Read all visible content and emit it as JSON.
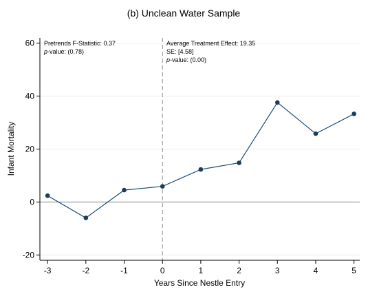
{
  "chart_data": {
    "type": "line",
    "title": "(b) Unclean Water Sample",
    "xlabel": "Years Since Nestle Entry",
    "ylabel": "Infant Mortality",
    "x": [
      -3,
      -2,
      -1,
      0,
      1,
      2,
      3,
      4,
      5
    ],
    "series": [
      {
        "values": [
          2.4,
          -6.0,
          4.5,
          5.9,
          12.3,
          14.8,
          37.6,
          25.8,
          33.3
        ]
      }
    ],
    "xlim": [
      -3.2,
      5.15
    ],
    "ylim": [
      -22,
      62
    ],
    "xticks": [
      "-3",
      "-2",
      "-1",
      "0",
      "1",
      "2",
      "3",
      "4",
      "5"
    ],
    "yticks": [
      "-20",
      "0",
      "20",
      "40",
      "60"
    ],
    "reference_lines": {
      "vertical_dashed_at_x": 0,
      "horizontal_at_y": 0
    },
    "grid": "horizontal light gridlines",
    "line_color": "#1f4e79",
    "marker_color": "#1f3b57",
    "annotations": {
      "left": {
        "line1": "Pretrends F-Statistic: 0.37",
        "pvalue_label": "p",
        "pvalue_rest": "-value: (0.78)"
      },
      "right": {
        "line1": "Average Treatment Effect: 19.35",
        "line2": "SE: [4.58]",
        "pvalue_label": "p",
        "pvalue_rest": "-value: (0.00)"
      }
    }
  }
}
